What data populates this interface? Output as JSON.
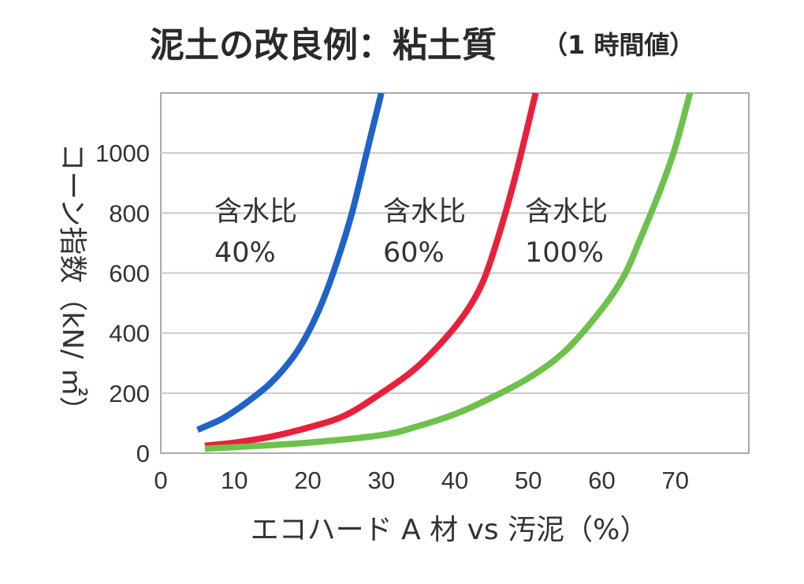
{
  "chart_data": {
    "type": "line",
    "title": "泥土の改良例：粘土質",
    "subtitle": "（1 時間値）",
    "xlabel": "エコハード A 材 vs 汚泥（%）",
    "ylabel": "コーン指数（kN/ ㎡）",
    "xlim": [
      0,
      80
    ],
    "ylim": [
      0,
      1200
    ],
    "x_ticks": [
      "0",
      "10",
      "20",
      "30",
      "40",
      "50",
      "60",
      "70"
    ],
    "y_ticks": [
      "0",
      "200",
      "400",
      "600",
      "800",
      "1000"
    ],
    "grid": true,
    "series": [
      {
        "name": "含水比 40%",
        "label_line1": "含水比",
        "label_line2": "40%",
        "color": "#1f63c8",
        "points": [
          [
            5,
            78
          ],
          [
            8,
            110
          ],
          [
            10,
            140
          ],
          [
            12,
            175
          ],
          [
            15,
            235
          ],
          [
            18,
            320
          ],
          [
            20,
            400
          ],
          [
            22,
            505
          ],
          [
            24,
            640
          ],
          [
            26,
            800
          ],
          [
            28,
            1000
          ],
          [
            30,
            1200
          ]
        ]
      },
      {
        "name": "含水比 60%",
        "label_line1": "含水比",
        "label_line2": "60%",
        "color": "#e8203a",
        "points": [
          [
            6,
            25
          ],
          [
            10,
            35
          ],
          [
            15,
            55
          ],
          [
            20,
            85
          ],
          [
            25,
            125
          ],
          [
            30,
            200
          ],
          [
            35,
            290
          ],
          [
            40,
            420
          ],
          [
            43,
            530
          ],
          [
            45,
            650
          ],
          [
            48,
            900
          ],
          [
            51,
            1200
          ]
        ]
      },
      {
        "name": "含水比 100%",
        "label_line1": "含水比",
        "label_line2": "100%",
        "color": "#6cc24a",
        "points": [
          [
            6,
            15
          ],
          [
            10,
            20
          ],
          [
            20,
            35
          ],
          [
            30,
            60
          ],
          [
            35,
            90
          ],
          [
            40,
            130
          ],
          [
            45,
            185
          ],
          [
            50,
            250
          ],
          [
            55,
            340
          ],
          [
            60,
            480
          ],
          [
            63,
            590
          ],
          [
            65,
            700
          ],
          [
            68,
            880
          ],
          [
            70,
            1020
          ],
          [
            72,
            1200
          ]
        ]
      }
    ]
  }
}
